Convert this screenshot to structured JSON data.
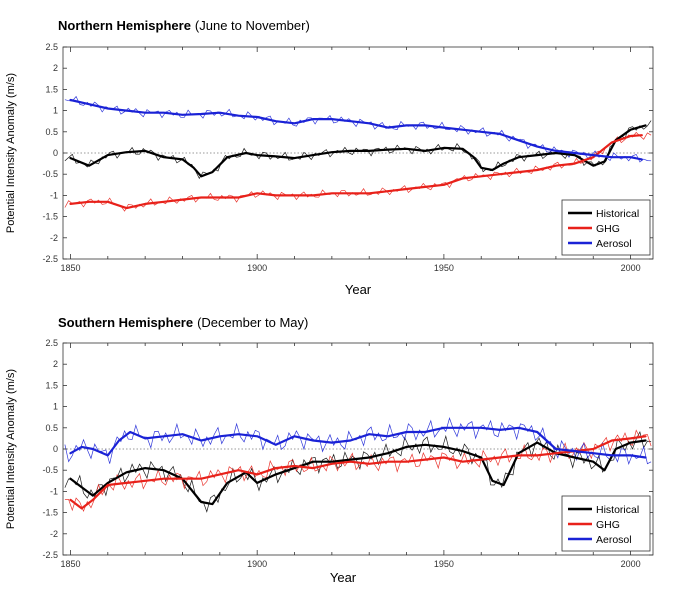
{
  "chart_data": [
    {
      "type": "line",
      "title": "Northern Hemisphere",
      "subtitle": "(June to November)",
      "xlabel": "Year",
      "ylabel": "Potential Intensity Anomaly  (m/s)",
      "xlim": [
        1848,
        2006
      ],
      "ylim": [
        -2.5,
        2.5
      ],
      "xticks": [
        1850,
        1900,
        1950,
        2000
      ],
      "yticks": [
        -2.5,
        -2,
        -1.5,
        -1,
        -0.5,
        0,
        0.5,
        1,
        1.5,
        2,
        2.5
      ],
      "ytick_labels": [
        "-2.5",
        "-2",
        "-1.5",
        "-1",
        "-0.5",
        "0",
        "0.5",
        "1",
        "1.5",
        "2",
        "2.5"
      ],
      "zero_line": "dotted",
      "legend_position": "bottom-right",
      "colors": {
        "Historical": "#000000",
        "GHG": "#e8211a",
        "Aerosol": "#1a22d6"
      },
      "series": [
        {
          "name": "Historical",
          "x": [
            1850,
            1855,
            1860,
            1865,
            1870,
            1875,
            1880,
            1883,
            1885,
            1888,
            1892,
            1897,
            1900,
            1905,
            1910,
            1915,
            1920,
            1925,
            1930,
            1935,
            1940,
            1945,
            1950,
            1955,
            1958,
            1960,
            1963,
            1966,
            1970,
            1975,
            1980,
            1985,
            1990,
            1993,
            1996,
            2000,
            2004
          ],
          "values": [
            -0.12,
            -0.3,
            -0.05,
            0.02,
            0.05,
            -0.1,
            -0.15,
            -0.35,
            -0.55,
            -0.45,
            -0.1,
            0.0,
            -0.05,
            -0.08,
            -0.12,
            -0.05,
            0.02,
            0.05,
            0.05,
            0.08,
            0.1,
            0.05,
            0.12,
            0.1,
            -0.1,
            -0.35,
            -0.4,
            -0.25,
            -0.1,
            -0.05,
            0.0,
            -0.05,
            -0.3,
            -0.2,
            0.3,
            0.55,
            0.65
          ]
        },
        {
          "name": "GHG",
          "x": [
            1850,
            1855,
            1860,
            1865,
            1870,
            1875,
            1880,
            1885,
            1890,
            1895,
            1900,
            1905,
            1910,
            1915,
            1920,
            1925,
            1930,
            1935,
            1940,
            1945,
            1950,
            1955,
            1960,
            1965,
            1970,
            1975,
            1980,
            1985,
            1990,
            1995,
            2000,
            2003
          ],
          "values": [
            -1.2,
            -1.15,
            -1.15,
            -1.3,
            -1.2,
            -1.15,
            -1.1,
            -1.05,
            -1.05,
            -1.05,
            -0.95,
            -1.0,
            -1.0,
            -1.0,
            -0.95,
            -0.95,
            -0.95,
            -0.9,
            -0.85,
            -0.8,
            -0.75,
            -0.6,
            -0.55,
            -0.5,
            -0.45,
            -0.4,
            -0.3,
            -0.25,
            -0.1,
            0.25,
            0.4,
            0.42
          ]
        },
        {
          "name": "Aerosol",
          "x": [
            1850,
            1855,
            1860,
            1865,
            1870,
            1875,
            1880,
            1885,
            1890,
            1895,
            1900,
            1905,
            1910,
            1915,
            1920,
            1925,
            1930,
            1935,
            1940,
            1945,
            1950,
            1955,
            1960,
            1965,
            1970,
            1975,
            1980,
            1985,
            1990,
            1995,
            2000,
            2003
          ],
          "values": [
            1.25,
            1.15,
            1.05,
            1.0,
            0.95,
            0.95,
            0.9,
            0.92,
            0.95,
            0.88,
            0.85,
            0.75,
            0.7,
            0.8,
            0.8,
            0.75,
            0.7,
            0.6,
            0.65,
            0.65,
            0.6,
            0.55,
            0.5,
            0.45,
            0.3,
            0.15,
            0.05,
            0.0,
            -0.05,
            -0.1,
            -0.1,
            -0.15
          ]
        }
      ]
    },
    {
      "type": "line",
      "title": "Southern Hemisphere",
      "subtitle": "(December to May)",
      "xlabel": "Year",
      "ylabel": "Potential Intensity Anomaly  (m/s)",
      "xlim": [
        1848,
        2006
      ],
      "ylim": [
        -2.5,
        2.5
      ],
      "xticks": [
        1850,
        1900,
        1950,
        2000
      ],
      "yticks": [
        -2.5,
        -2,
        -1.5,
        -1,
        -0.5,
        0,
        0.5,
        1,
        1.5,
        2,
        2.5
      ],
      "ytick_labels": [
        "-2.5",
        "-2",
        "-1.5",
        "-1",
        "-0.5",
        "0",
        "0.5",
        "1",
        "1.5",
        "2",
        "2.5"
      ],
      "zero_line": "dotted",
      "legend_position": "bottom-right",
      "colors": {
        "Historical": "#000000",
        "GHG": "#e8211a",
        "Aerosol": "#1a22d6"
      },
      "series": [
        {
          "name": "Historical",
          "x": [
            1850,
            1853,
            1856,
            1860,
            1865,
            1870,
            1875,
            1880,
            1885,
            1888,
            1892,
            1897,
            1900,
            1905,
            1910,
            1915,
            1920,
            1925,
            1930,
            1935,
            1940,
            1945,
            1950,
            1955,
            1960,
            1963,
            1966,
            1970,
            1975,
            1980,
            1985,
            1990,
            1993,
            1996,
            2000,
            2004
          ],
          "values": [
            -0.7,
            -0.9,
            -1.1,
            -0.8,
            -0.55,
            -0.45,
            -0.5,
            -0.7,
            -1.25,
            -1.3,
            -0.8,
            -0.55,
            -0.8,
            -0.6,
            -0.45,
            -0.3,
            -0.3,
            -0.25,
            -0.2,
            -0.1,
            0.05,
            0.1,
            0.05,
            -0.05,
            -0.2,
            -0.75,
            -0.85,
            -0.1,
            0.15,
            -0.1,
            -0.2,
            -0.3,
            -0.5,
            0.0,
            0.15,
            0.2
          ]
        },
        {
          "name": "GHG",
          "x": [
            1850,
            1853,
            1856,
            1860,
            1865,
            1870,
            1875,
            1880,
            1885,
            1890,
            1895,
            1900,
            1905,
            1910,
            1915,
            1920,
            1925,
            1930,
            1935,
            1940,
            1945,
            1950,
            1955,
            1960,
            1965,
            1970,
            1975,
            1980,
            1985,
            1990,
            1995,
            2000,
            2004
          ],
          "values": [
            -1.2,
            -1.4,
            -1.2,
            -0.85,
            -0.8,
            -0.75,
            -0.7,
            -0.7,
            -0.7,
            -0.6,
            -0.5,
            -0.6,
            -0.45,
            -0.4,
            -0.45,
            -0.35,
            -0.3,
            -0.35,
            -0.3,
            -0.3,
            -0.25,
            -0.2,
            -0.3,
            -0.25,
            -0.2,
            -0.15,
            -0.15,
            -0.1,
            -0.05,
            0.0,
            0.2,
            0.25,
            0.3
          ]
        },
        {
          "name": "Aerosol",
          "x": [
            1850,
            1853,
            1856,
            1860,
            1863,
            1866,
            1870,
            1875,
            1880,
            1885,
            1890,
            1895,
            1900,
            1905,
            1910,
            1915,
            1920,
            1925,
            1930,
            1935,
            1940,
            1945,
            1950,
            1955,
            1960,
            1965,
            1970,
            1975,
            1980,
            1985,
            1990,
            1995,
            2000,
            2004
          ],
          "values": [
            -0.1,
            0.05,
            0.0,
            -0.15,
            0.2,
            0.4,
            0.25,
            0.3,
            0.35,
            0.2,
            0.3,
            0.35,
            0.3,
            0.1,
            0.3,
            0.2,
            0.15,
            0.2,
            0.35,
            0.3,
            0.4,
            0.4,
            0.5,
            0.5,
            0.5,
            0.45,
            0.5,
            0.4,
            0.0,
            -0.05,
            -0.1,
            -0.15,
            -0.15,
            -0.2
          ]
        }
      ]
    }
  ]
}
